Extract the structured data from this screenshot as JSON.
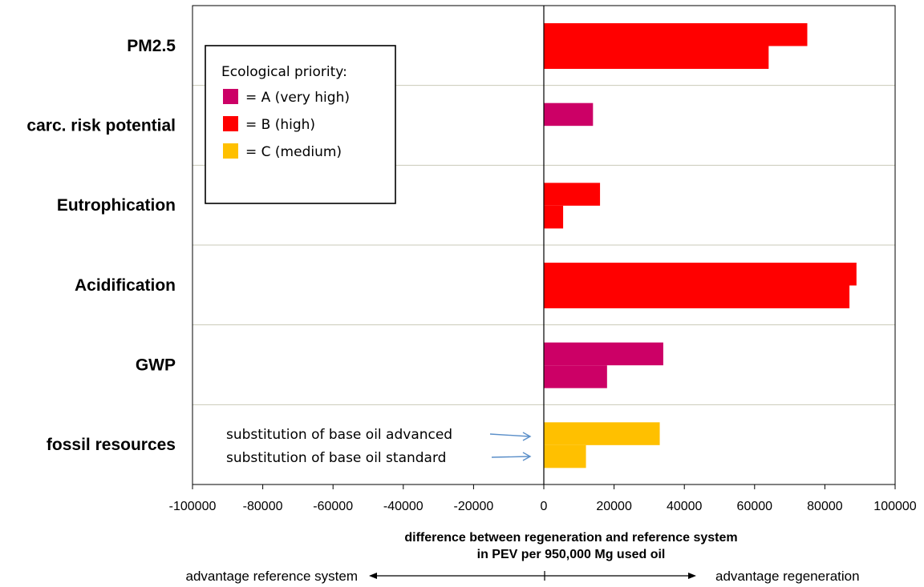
{
  "chart_data": {
    "type": "bar",
    "orientation": "horizontal",
    "categories": [
      "PM2.5",
      "carc. risk potential",
      "Eutrophication",
      "Acidification",
      "GWP",
      "fossil resources"
    ],
    "series": [
      {
        "name": "substitution of base oil advanced",
        "values": [
          75000,
          14000,
          16000,
          89000,
          34000,
          33000
        ]
      },
      {
        "name": "substitution of base oil standard",
        "values": [
          64000,
          null,
          5500,
          87000,
          18000,
          12000
        ]
      }
    ],
    "priority": [
      "B",
      "A",
      "B",
      "B",
      "A",
      "C"
    ],
    "xlim": [
      -100000,
      100000
    ],
    "xticks": [
      -100000,
      -80000,
      -60000,
      -40000,
      -20000,
      0,
      20000,
      40000,
      60000,
      80000,
      100000
    ],
    "xtick_labels": [
      "-100000",
      "-80000",
      "-60000",
      "-40000",
      "-20000",
      "0",
      "20000",
      "40000",
      "60000",
      "80000",
      "100000"
    ],
    "xlabel_line1": "difference between regeneration and reference system",
    "xlabel_line2": "in PEV per 950,000 Mg used oil",
    "direction_left": "advantage reference system",
    "direction_right": "advantage regeneration",
    "grid": "horizontal separators between categories",
    "legend": {
      "title": "Ecological priority:",
      "position": "top-left",
      "items": [
        {
          "key": "A",
          "label": "= A (very high)",
          "color": "#CC0066"
        },
        {
          "key": "B",
          "label": "= B (high)",
          "color": "#FF0000"
        },
        {
          "key": "C",
          "label": "= C (medium)",
          "color": "#FFC000"
        }
      ]
    },
    "annotations": [
      "substitution of base oil advanced",
      "substitution of base oil standard"
    ]
  }
}
